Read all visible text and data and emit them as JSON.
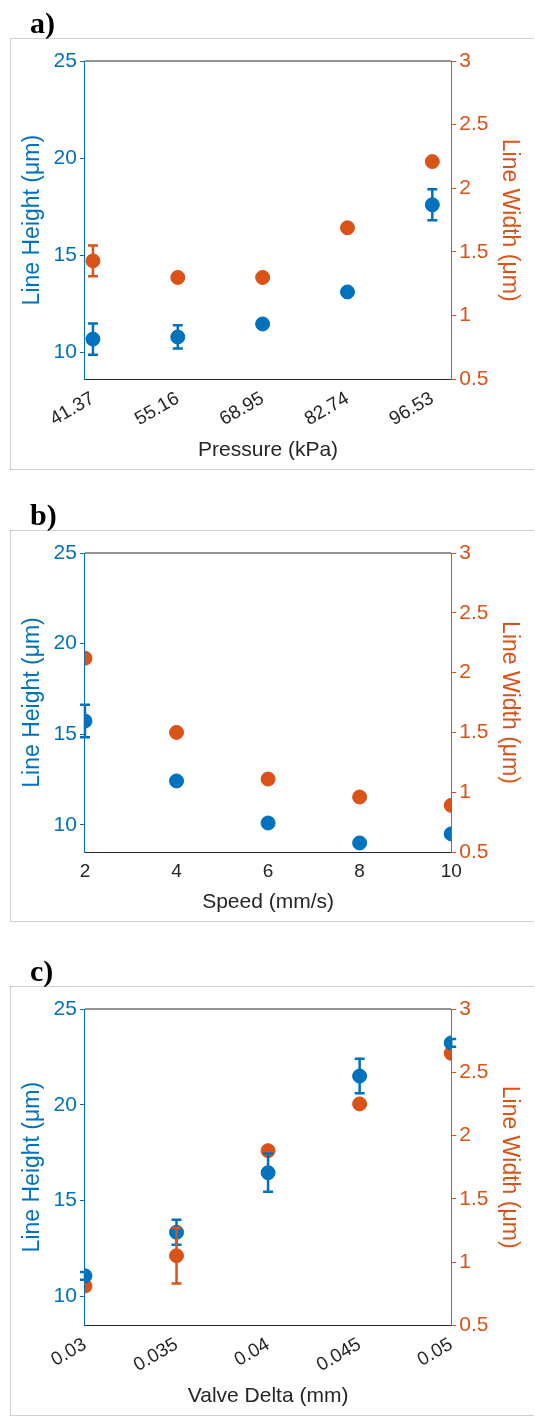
{
  "chart_data": [
    {
      "type": "scatter",
      "title": "a)",
      "xlabel": "Pressure (kPa)",
      "ylabel": "Line Height (μm)",
      "y2label": "Line Width (μm)",
      "x": [
        41.37,
        55.16,
        68.95,
        82.74,
        96.53
      ],
      "xlim": [
        40.07,
        99.6
      ],
      "xticks": [
        41.37,
        55.16,
        68.95,
        82.74,
        96.53
      ],
      "ylim": [
        8.6,
        25
      ],
      "yticks": [
        10,
        15,
        20,
        25
      ],
      "y2lim": [
        0.5,
        3
      ],
      "y2ticks": [
        0.5,
        1,
        1.5,
        2,
        2.5,
        3
      ],
      "grid": false,
      "legend": false,
      "marker": "circle",
      "series": [
        {
          "color": "#0072bd",
          "values": [
            10.67,
            10.78,
            11.45,
            13.1,
            17.59
          ],
          "errors": [
            0.8,
            0.6,
            0.2,
            null,
            0.8
          ]
        },
        {
          "color": "#d95319",
          "axis": "y2",
          "values": [
            1.43,
            1.3,
            1.3,
            1.69,
            2.21
          ],
          "errors": [
            0.12,
            null,
            null,
            null,
            null
          ]
        }
      ]
    },
    {
      "type": "scatter",
      "title": "b)",
      "xlabel": "Speed (mm/s)",
      "ylabel": "Line Height (μm)",
      "y2label": "Line Width (μm)",
      "x": [
        2,
        4,
        6,
        8,
        10
      ],
      "xlim": [
        2,
        10
      ],
      "xticks": [
        2,
        4,
        6,
        8,
        10
      ],
      "ylim": [
        8.5,
        25
      ],
      "yticks": [
        10,
        15,
        20,
        25
      ],
      "y2lim": [
        0.5,
        3
      ],
      "y2ticks": [
        0.5,
        1,
        1.5,
        2,
        2.5,
        3
      ],
      "grid": false,
      "legend": false,
      "marker": "circle",
      "series": [
        {
          "color": "#0072bd",
          "values": [
            15.73,
            12.42,
            10.1,
            9.0,
            9.5
          ],
          "errors": [
            0.9,
            null,
            null,
            null,
            null
          ]
        },
        {
          "color": "#d95319",
          "axis": "y2",
          "values": [
            2.12,
            1.5,
            1.11,
            0.96,
            0.89
          ]
        }
      ]
    },
    {
      "type": "scatter",
      "title": "c)",
      "xlabel": "Valve Delta (mm)",
      "ylabel": "Line Height (μm)",
      "y2label": "Line Width (μm)",
      "x": [
        0.03,
        0.035,
        0.04,
        0.045,
        0.05
      ],
      "xlim": [
        0.03,
        0.05
      ],
      "xticks": [
        0.03,
        0.035,
        0.04,
        0.045,
        0.05
      ],
      "ylim": [
        8.5,
        25
      ],
      "yticks": [
        10,
        15,
        20,
        25
      ],
      "y2lim": [
        0.5,
        3
      ],
      "y2ticks": [
        0.5,
        1,
        1.5,
        2,
        2.5,
        3
      ],
      "grid": false,
      "legend": false,
      "marker": "circle",
      "series": [
        {
          "color": "#0072bd",
          "values": [
            11.08,
            13.35,
            16.46,
            21.5,
            23.23
          ],
          "errors": [
            0.2,
            0.65,
            1.0,
            0.9,
            0.2
          ]
        },
        {
          "color": "#d95319",
          "axis": "y2",
          "values": [
            0.81,
            1.05,
            1.88,
            2.25,
            2.65
          ],
          "errors": [
            null,
            0.22,
            null,
            null,
            null
          ]
        }
      ]
    }
  ]
}
